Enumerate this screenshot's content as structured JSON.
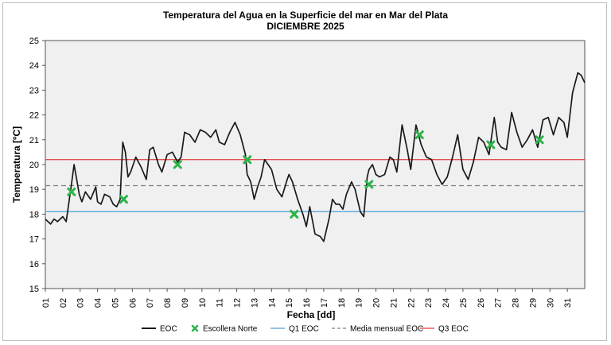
{
  "chart_data": {
    "type": "line",
    "title_line1": "Temperatura del Agua en la Superficie del mar en Mar del Plata",
    "title_line2": "DICIEMBRE 2025",
    "xlabel": "Fecha [dd]",
    "ylabel": "Temperatura [ºC]",
    "ylim": [
      15,
      25
    ],
    "xlim": [
      1,
      32
    ],
    "yticks": [
      "15",
      "16",
      "17",
      "18",
      "19",
      "20",
      "21",
      "22",
      "23",
      "24",
      "25"
    ],
    "xticks": [
      "01",
      "02",
      "03",
      "04",
      "05",
      "06",
      "07",
      "08",
      "09",
      "10",
      "11",
      "12",
      "13",
      "14",
      "15",
      "16",
      "17",
      "18",
      "19",
      "20",
      "21",
      "22",
      "23",
      "24",
      "25",
      "26",
      "27",
      "28",
      "29",
      "30",
      "31"
    ],
    "grid": false,
    "legend_position": "bottom",
    "colors": {
      "eoc": "#1a1a1a",
      "escollera": "#2db34a",
      "q1": "#4a9fd6",
      "media": "#7f7f7f",
      "q3": "#e03a3a",
      "plot_bg": "#f0f0f0"
    },
    "series": [
      {
        "name": "EOC",
        "kind": "line",
        "x": [
          1.0,
          1.3,
          1.5,
          1.7,
          2.0,
          2.2,
          2.5,
          2.65,
          2.8,
          2.95,
          3.1,
          3.3,
          3.6,
          3.9,
          4.0,
          4.2,
          4.4,
          4.7,
          4.9,
          5.1,
          5.3,
          5.45,
          5.6,
          5.75,
          5.9,
          6.2,
          6.5,
          6.8,
          7.0,
          7.2,
          7.5,
          7.7,
          8.0,
          8.3,
          8.6,
          8.8,
          9.0,
          9.3,
          9.6,
          9.9,
          10.2,
          10.5,
          10.8,
          11.0,
          11.3,
          11.6,
          11.9,
          12.2,
          12.5,
          12.6,
          12.8,
          13.0,
          13.2,
          13.4,
          13.6,
          14.0,
          14.3,
          14.6,
          14.9,
          15.0,
          15.2,
          15.5,
          15.8,
          16.0,
          16.2,
          16.5,
          16.8,
          17.0,
          17.3,
          17.5,
          17.7,
          17.9,
          18.1,
          18.3,
          18.6,
          18.8,
          19.1,
          19.3,
          19.5,
          19.6,
          19.8,
          20.0,
          20.2,
          20.5,
          20.8,
          21.0,
          21.2,
          21.5,
          21.8,
          22.0,
          22.3,
          22.6,
          22.9,
          23.2,
          23.5,
          23.8,
          24.1,
          24.4,
          24.7,
          25.0,
          25.3,
          25.6,
          25.9,
          26.2,
          26.5,
          26.8,
          27.0,
          27.2,
          27.5,
          27.8,
          28.1,
          28.4,
          28.7,
          29.0,
          29.3,
          29.6,
          29.9,
          30.2,
          30.5,
          30.8,
          31.0,
          31.3,
          31.6,
          31.8,
          32.0
        ],
        "y": [
          17.8,
          17.6,
          17.8,
          17.7,
          17.9,
          17.7,
          19.2,
          20.0,
          19.4,
          18.8,
          18.5,
          18.9,
          18.6,
          19.1,
          18.5,
          18.4,
          18.8,
          18.7,
          18.4,
          18.3,
          18.6,
          20.9,
          20.5,
          19.5,
          19.7,
          20.3,
          19.9,
          19.4,
          20.6,
          20.7,
          20.0,
          19.7,
          20.4,
          20.5,
          20.1,
          20.3,
          21.3,
          21.2,
          20.9,
          21.4,
          21.3,
          21.1,
          21.4,
          20.9,
          20.8,
          21.3,
          21.7,
          21.2,
          20.4,
          19.6,
          19.3,
          18.6,
          19.1,
          19.5,
          20.2,
          19.8,
          19.0,
          18.7,
          19.4,
          19.6,
          19.3,
          18.6,
          18.0,
          17.5,
          18.3,
          17.2,
          17.1,
          16.9,
          17.8,
          18.6,
          18.4,
          18.4,
          18.2,
          18.8,
          19.3,
          19.0,
          18.1,
          17.9,
          19.5,
          19.8,
          20.0,
          19.6,
          19.5,
          19.6,
          20.3,
          20.2,
          19.7,
          21.6,
          20.6,
          19.8,
          21.6,
          20.8,
          20.3,
          20.2,
          19.6,
          19.2,
          19.5,
          20.3,
          21.2,
          19.8,
          19.4,
          20.1,
          21.1,
          20.9,
          20.4,
          21.9,
          20.9,
          20.7,
          20.6,
          22.1,
          21.3,
          20.7,
          21.0,
          21.4,
          20.7,
          21.8,
          21.9,
          21.2,
          21.9,
          21.7,
          21.1,
          22.9,
          23.7,
          23.6,
          23.3
        ]
      },
      {
        "name": "Escollera Norte",
        "kind": "marker",
        "x": [
          2.5,
          5.5,
          8.6,
          12.6,
          15.3,
          19.6,
          22.5,
          26.6,
          29.4
        ],
        "y": [
          18.9,
          18.6,
          20.0,
          20.2,
          18.0,
          19.2,
          21.2,
          20.8,
          21.0
        ]
      },
      {
        "name": "Q1 EOC",
        "kind": "hline",
        "value": 18.1
      },
      {
        "name": "Media mensual EOC",
        "kind": "hline",
        "value": 19.15
      },
      {
        "name": "Q3  EOC",
        "kind": "hline",
        "value": 20.2
      }
    ],
    "legend": [
      {
        "key": "eoc",
        "label": "EOC"
      },
      {
        "key": "escollera",
        "label": "Escollera Norte"
      },
      {
        "key": "q1",
        "label": "Q1 EOC"
      },
      {
        "key": "media",
        "label": "Media mensual EOC"
      },
      {
        "key": "q3",
        "label": "Q3  EOC"
      }
    ]
  }
}
